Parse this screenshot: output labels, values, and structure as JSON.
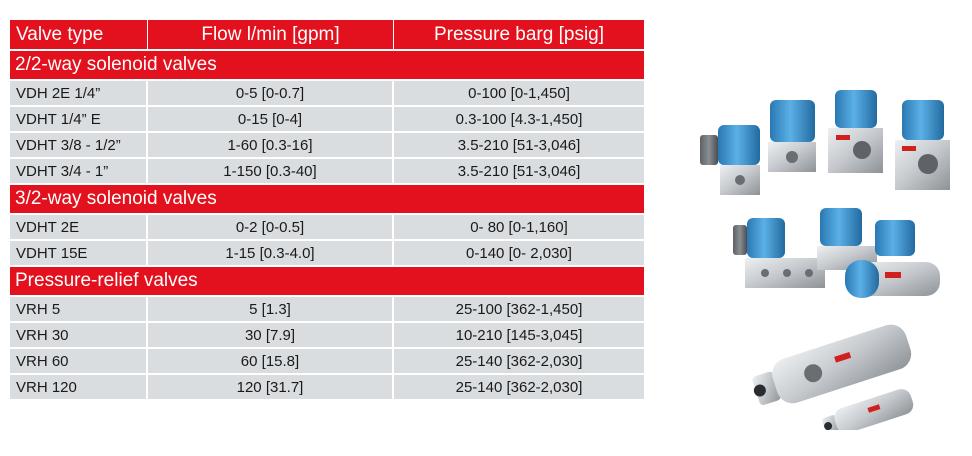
{
  "table": {
    "headers": [
      "Valve type",
      "Flow l/min [gpm]",
      "Pressure barg [psig]"
    ],
    "sections": [
      {
        "title": "2/2-way solenoid valves",
        "rows": [
          [
            "VDH 2E 1/4”",
            "0-5 [0-0.7]",
            "0-100 [0-1,450]"
          ],
          [
            "VDHT 1/4” E",
            "0-15 [0-4]",
            "0.3-100 [4.3-1,450]"
          ],
          [
            "VDHT 3/8 - 1/2”",
            "1-60 [0.3-16]",
            "3.5-210 [51-3,046]"
          ],
          [
            "VDHT 3/4 - 1”",
            "1-150 [0.3-40]",
            "3.5-210 [51-3,046]"
          ]
        ]
      },
      {
        "title": "3/2-way solenoid valves",
        "rows": [
          [
            "VDHT 2E",
            "0-2 [0-0.5]",
            "0- 80 [0-1,160]"
          ],
          [
            "VDHT 15E",
            "1-15 [0.3-4.0]",
            "0-140 [0- 2,030]"
          ]
        ]
      },
      {
        "title": "Pressure-relief valves",
        "rows": [
          [
            "VRH 5",
            "5 [1.3]",
            "25-100 [362-1,450]"
          ],
          [
            "VRH 30",
            "30 [7.9]",
            "10-210 [145-3,045]"
          ],
          [
            "VRH 60",
            "60 [15.8]",
            "25-140 [362-2,030]"
          ],
          [
            "VRH 120",
            "120 [31.7]",
            "25-140 [362-2,030]"
          ]
        ]
      }
    ]
  },
  "colors": {
    "header_red": "#e3101d",
    "row_gray": "#d9dde0",
    "coil_blue": "#3a8fc9",
    "steel": "#c4c8cc"
  },
  "images": [
    "2-2-way-solenoid-valves-photo",
    "3-2-way-solenoid-valves-photo",
    "pressure-relief-valves-photo"
  ]
}
